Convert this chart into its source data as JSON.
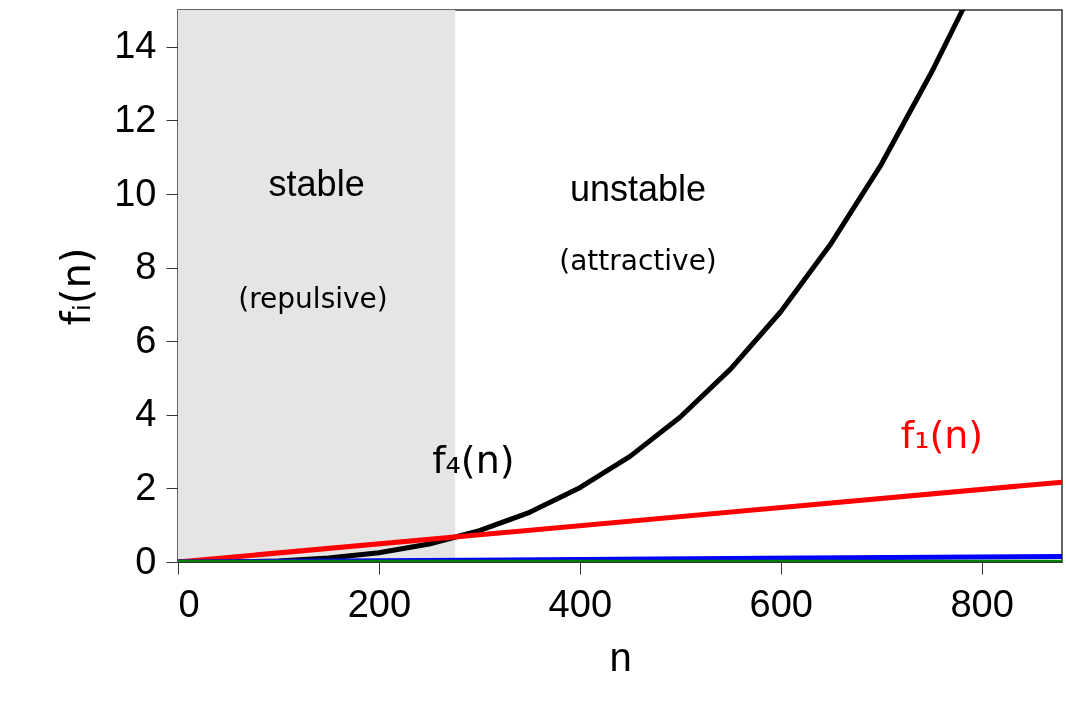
{
  "chart_data": {
    "type": "line",
    "xlabel": "n",
    "ylabel": "fᵢ(n)",
    "xlim": [
      0,
      880
    ],
    "xticks": [
      0,
      200,
      400,
      600,
      800
    ],
    "ylim": [
      0,
      15
    ],
    "yticks": [
      0,
      2,
      4,
      6,
      8,
      10,
      12,
      14
    ],
    "grid": false,
    "series": [
      {
        "name": "f₄(n)",
        "color": "#000000",
        "x": [
          0,
          50,
          100,
          150,
          200,
          250,
          300,
          350,
          400,
          450,
          500,
          550,
          600,
          650,
          700,
          750,
          781
        ],
        "values": [
          0,
          0,
          0.03,
          0.11,
          0.25,
          0.49,
          0.85,
          1.35,
          2.02,
          2.87,
          3.94,
          5.24,
          6.8,
          8.65,
          10.8,
          13.3,
          15
        ]
      },
      {
        "name": "f₁(n)",
        "color": "#ff0000",
        "x": [
          0,
          880
        ],
        "values": [
          0,
          2.17
        ]
      },
      {
        "color": "#0000ff",
        "x": [
          0,
          880
        ],
        "values": [
          0,
          0.15
        ]
      },
      {
        "color": "#008000",
        "x": [
          0,
          880
        ],
        "values": [
          0.02,
          0.02
        ]
      }
    ],
    "bands": [
      {
        "axis": "x",
        "from": 0,
        "to": 276,
        "label": "stable",
        "color": "#e5e5e5"
      }
    ],
    "annotations": [
      "(repulsive)",
      "unstable",
      "(attractive)"
    ]
  }
}
